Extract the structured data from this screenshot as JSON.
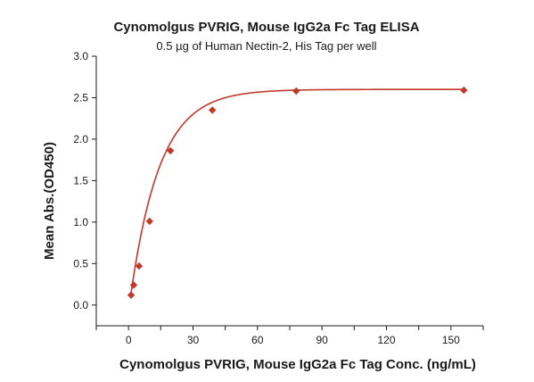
{
  "chart_data": {
    "type": "scatter",
    "title": "Cynomolgus PVRIG, Mouse IgG2a Fc Tag ELISA",
    "subtitle": "0.5 µg of Human Nectin-2, His Tag per well",
    "xlabel": "Cynomolgus PVRIG, Mouse IgG2a Fc Tag Conc. (ng/mL)",
    "ylabel": "Mean Abs.(OD450)",
    "xlim": [
      -15,
      165
    ],
    "ylim": [
      -0.25,
      3.0
    ],
    "x_ticks": [
      0,
      30,
      60,
      90,
      120,
      150
    ],
    "y_ticks": [
      0.0,
      0.5,
      1.0,
      1.5,
      2.0,
      2.5,
      3.0
    ],
    "y_tick_labels": [
      "0.0",
      "0.5",
      "1.0",
      "1.5",
      "2.0",
      "2.5",
      "3.0"
    ],
    "grid": false,
    "legend": "none",
    "series": [
      {
        "x": [
          1.2,
          2.4,
          4.9,
          9.8,
          19.5,
          39,
          78,
          156
        ],
        "y": [
          0.12,
          0.24,
          0.47,
          1.01,
          1.86,
          2.35,
          2.58,
          2.59
        ]
      }
    ],
    "fit": {
      "model": "one-phase-exponential",
      "top": 2.6,
      "bottom": 0.0,
      "k": 0.073,
      "x0": 0.4
    },
    "colors": {
      "series": "#c0392b",
      "axis": "#1a1a1a"
    }
  }
}
